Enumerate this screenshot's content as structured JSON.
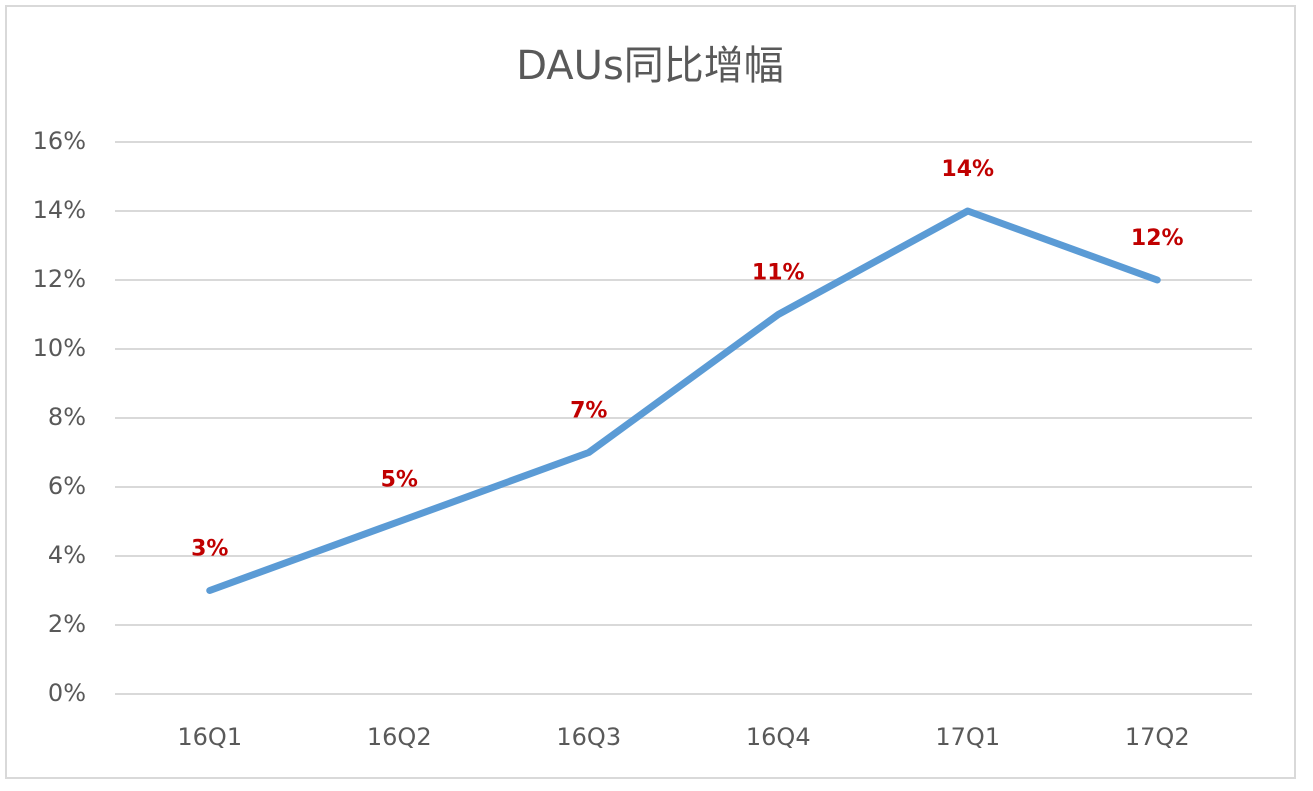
{
  "chart_data": {
    "type": "line",
    "title": "DAUs同比增幅",
    "categories": [
      "16Q1",
      "16Q2",
      "16Q3",
      "16Q4",
      "17Q1",
      "17Q2"
    ],
    "series": [
      {
        "color": "#5b9bd5",
        "values": [
          3,
          5,
          7,
          11,
          14,
          12
        ],
        "value_labels": [
          "3%",
          "5%",
          "7%",
          "11%",
          "14%",
          "12%"
        ],
        "label_color": "#c00000"
      }
    ],
    "ylim": [
      0,
      16
    ],
    "yticks": [
      {
        "value": 0,
        "label": "0%"
      },
      {
        "value": 2,
        "label": "2%"
      },
      {
        "value": 4,
        "label": "4%"
      },
      {
        "value": 6,
        "label": "6%"
      },
      {
        "value": 8,
        "label": "8%"
      },
      {
        "value": 10,
        "label": "10%"
      },
      {
        "value": 12,
        "label": "12%"
      },
      {
        "value": 14,
        "label": "14%"
      },
      {
        "value": 16,
        "label": "16%"
      }
    ],
    "grid": true
  }
}
